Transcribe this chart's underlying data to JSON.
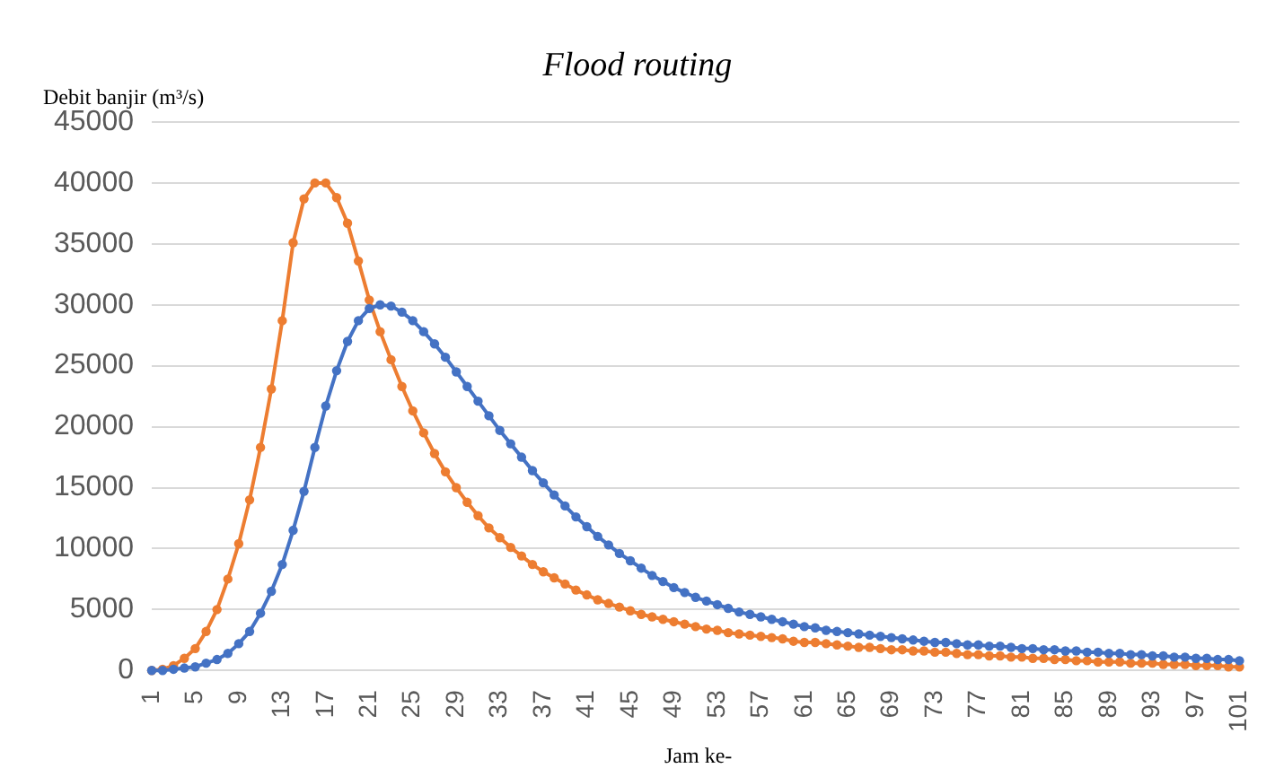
{
  "chart_data": {
    "type": "line",
    "title": "Flood routing",
    "ylabel": "Debit banjir (m³/s)",
    "xlabel": "Jam ke-",
    "categories": [
      "1",
      null,
      null,
      null,
      "5",
      null,
      null,
      null,
      "9",
      null,
      null,
      null,
      "13",
      null,
      null,
      null,
      "17",
      null,
      null,
      null,
      "21",
      null,
      null,
      null,
      "25",
      null,
      null,
      null,
      "29",
      null,
      null,
      null,
      "33",
      null,
      null,
      null,
      "37",
      null,
      null,
      null,
      "41",
      null,
      null,
      null,
      "45",
      null,
      null,
      null,
      "49",
      null,
      null,
      null,
      "53",
      null,
      null,
      null,
      "57",
      null,
      null,
      null,
      "61",
      null,
      null,
      null,
      "65",
      null,
      null,
      null,
      "69",
      null,
      null,
      null,
      "73",
      null,
      null,
      null,
      "77",
      null,
      null,
      null,
      "81",
      null,
      null,
      null,
      "85",
      null,
      null,
      null,
      "89",
      null,
      null,
      null,
      "93",
      null,
      null,
      null,
      "97",
      null,
      null,
      null,
      "101"
    ],
    "series": [
      {
        "color": "#4472c4",
        "values": [
          0,
          0,
          100,
          200,
          300,
          600,
          900,
          1400,
          2200,
          3200,
          4700,
          6500,
          8700,
          11500,
          14700,
          18300,
          21700,
          24600,
          27000,
          28700,
          29700,
          30000,
          29900,
          29400,
          28700,
          27800,
          26800,
          25700,
          24500,
          23300,
          22100,
          20900,
          19700,
          18600,
          17500,
          16400,
          15400,
          14400,
          13500,
          12600,
          11800,
          11000,
          10300,
          9600,
          9000,
          8400,
          7800,
          7300,
          6800,
          6400,
          6000,
          5700,
          5400,
          5100,
          4800,
          4600,
          4400,
          4200,
          4000,
          3800,
          3600,
          3500,
          3300,
          3200,
          3100,
          3000,
          2900,
          2800,
          2700,
          2600,
          2500,
          2400,
          2300,
          2300,
          2200,
          2100,
          2100,
          2000,
          2000,
          1900,
          1800,
          1800,
          1700,
          1700,
          1600,
          1600,
          1500,
          1500,
          1400,
          1400,
          1300,
          1300,
          1200,
          1200,
          1100,
          1100,
          1000,
          1000,
          900,
          900,
          800
        ]
      },
      {
        "color": "#ed7d31",
        "values": [
          0,
          100,
          400,
          1000,
          1800,
          3200,
          5000,
          7500,
          10400,
          14000,
          18300,
          23100,
          28700,
          35100,
          38700,
          40000,
          40000,
          38800,
          36700,
          33600,
          30400,
          27800,
          25500,
          23300,
          21300,
          19500,
          17800,
          16300,
          15000,
          13800,
          12700,
          11700,
          10900,
          10100,
          9400,
          8700,
          8100,
          7600,
          7100,
          6600,
          6200,
          5800,
          5500,
          5200,
          4900,
          4600,
          4400,
          4200,
          4000,
          3800,
          3600,
          3400,
          3300,
          3100,
          3000,
          2900,
          2800,
          2700,
          2600,
          2400,
          2300,
          2300,
          2200,
          2100,
          2000,
          1900,
          1900,
          1800,
          1700,
          1700,
          1600,
          1600,
          1500,
          1500,
          1400,
          1300,
          1300,
          1200,
          1200,
          1100,
          1100,
          1000,
          1000,
          900,
          900,
          800,
          800,
          700,
          700,
          700,
          600,
          600,
          600,
          500,
          500,
          500,
          400,
          400,
          400,
          300,
          300
        ]
      }
    ],
    "ylim": [
      0,
      45000
    ],
    "yticks": [
      0,
      5000,
      10000,
      15000,
      20000,
      25000,
      30000,
      35000,
      40000,
      45000
    ],
    "grid": "y",
    "legend": false,
    "marker": "circle",
    "line_style": "solid"
  }
}
